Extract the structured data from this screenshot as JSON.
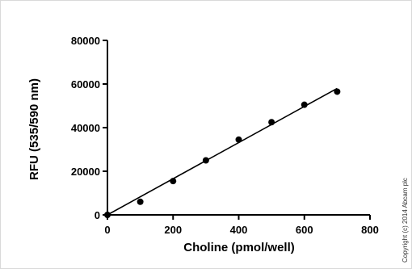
{
  "chart_data": {
    "type": "scatter",
    "title": "",
    "xlabel": "Choline (pmol/well)",
    "ylabel": "RFU (535/590 nm)",
    "xlim": [
      0,
      800
    ],
    "ylim": [
      0,
      80000
    ],
    "xticks": [
      0,
      200,
      400,
      600,
      800
    ],
    "yticks": [
      0,
      20000,
      40000,
      60000,
      80000
    ],
    "grid": false,
    "series": [
      {
        "x": [
          0,
          100,
          200,
          300,
          400,
          500,
          600,
          700
        ],
        "y": [
          0,
          6000,
          15500,
          25000,
          34500,
          42500,
          50500,
          56500
        ]
      }
    ],
    "fit_line": {
      "x": [
        0,
        700
      ],
      "y": [
        0,
        58000
      ]
    }
  },
  "copyright": "Copyright (c) 2014 Abcam plc"
}
